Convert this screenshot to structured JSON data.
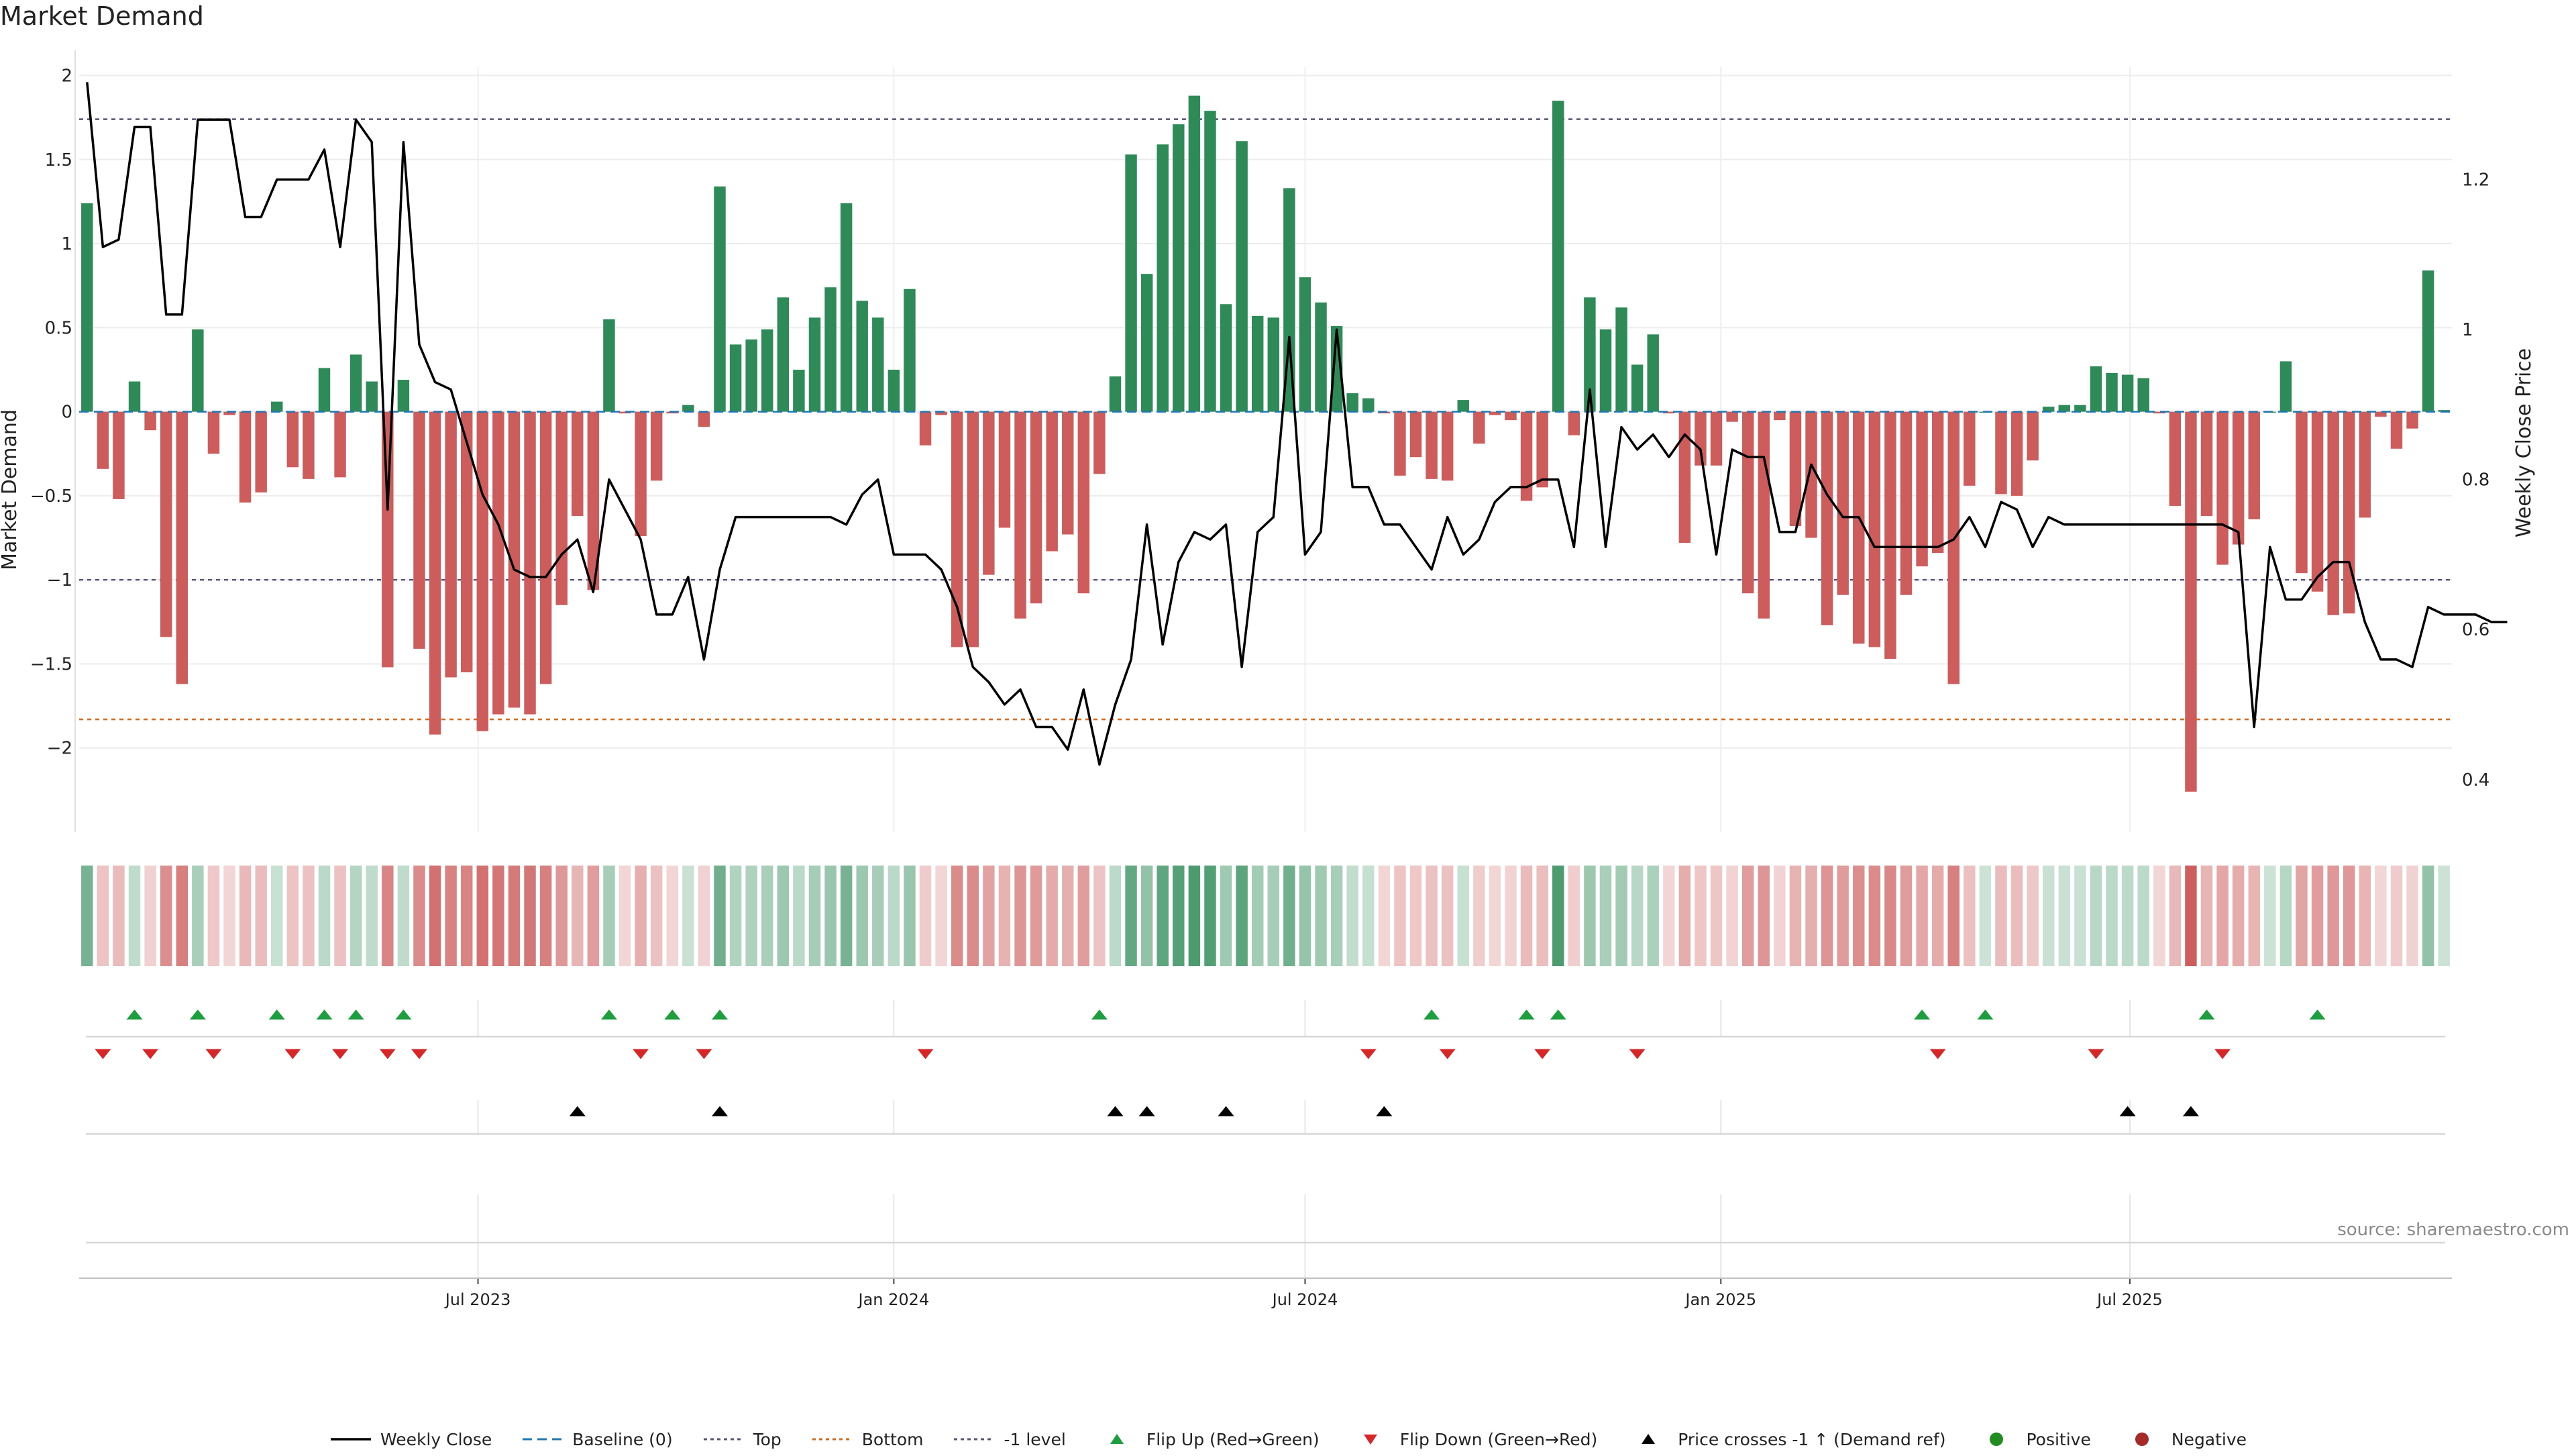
{
  "title": "Market Demand",
  "source": "source: sharemaestro.com",
  "colors": {
    "positive": "#2e8b57",
    "negative": "#cd5c5c",
    "close": "#000000",
    "baseline": "#1f77b4",
    "top": "#555577",
    "bottom": "#d2691e",
    "minus_one": "#555577",
    "flip_up": "#1f9e40",
    "flip_down": "#d62728",
    "cross": "#000000",
    "positive_dot": "#228b22",
    "negative_dot": "#a52a2a"
  },
  "chart_data": {
    "type": "bar",
    "start_date": "2023-01-09",
    "interval": "weekly",
    "title": "Market Demand",
    "ylabel": "Market Demand",
    "y2label": "Weekly Close Price",
    "ylim": [
      -2.5,
      2.05
    ],
    "y2lim": [
      0.33,
      1.35
    ],
    "yticks": [
      2,
      1.5,
      1,
      0.5,
      0,
      -0.5,
      -1,
      -1.5,
      -2
    ],
    "yticklabels": [
      "2",
      "1.5",
      "1",
      "0.5",
      "0",
      "−0.5",
      "−1",
      "−1.5",
      "−2"
    ],
    "y2ticks": [
      1.2,
      1.0,
      0.8,
      0.6,
      0.4
    ],
    "y2ticklabels": [
      "1.2",
      "1",
      "0.8",
      "0.6",
      "0.4"
    ],
    "xtick_dates": [
      "2023-07-01",
      "2024-01-01",
      "2024-07-01",
      "2025-01-01",
      "2025-07-01"
    ],
    "xticklabels": [
      "Jul 2023",
      "Jan 2024",
      "Jul 2024",
      "Jan 2025",
      "Jul 2025"
    ],
    "top_level": 1.74,
    "bottom_level": -1.83,
    "minus_one_level": -1.0,
    "grid": true,
    "legend_position": "bottom-center",
    "demand": [
      1.24,
      -0.34,
      -0.52,
      0.18,
      -0.11,
      -1.34,
      -1.62,
      0.49,
      -0.25,
      -0.02,
      -0.54,
      -0.48,
      0.06,
      -0.33,
      -0.4,
      0.26,
      -0.39,
      0.34,
      0.18,
      -1.52,
      0.19,
      -1.41,
      -1.92,
      -1.58,
      -1.55,
      -1.9,
      -1.8,
      -1.76,
      -1.8,
      -1.62,
      -1.15,
      -0.62,
      -1.06,
      0.55,
      -0.01,
      -0.74,
      -0.41,
      -0.01,
      0.04,
      -0.09,
      1.34,
      0.4,
      0.43,
      0.49,
      0.68,
      0.25,
      0.56,
      0.74,
      1.24,
      0.66,
      0.56,
      0.25,
      0.73,
      -0.2,
      -0.02,
      -1.4,
      -1.4,
      -0.97,
      -0.69,
      -1.23,
      -1.14,
      -0.83,
      -0.73,
      -1.08,
      -0.37,
      0.21,
      1.53,
      0.82,
      1.59,
      1.71,
      1.88,
      1.79,
      0.64,
      1.61,
      0.57,
      0.56,
      1.33,
      0.8,
      0.65,
      0.51,
      0.11,
      0.08,
      -0.01,
      -0.38,
      -0.27,
      -0.4,
      -0.41,
      0.07,
      -0.19,
      -0.02,
      -0.05,
      -0.53,
      -0.45,
      1.85,
      -0.14,
      0.68,
      0.49,
      0.62,
      0.28,
      0.46,
      -0.01,
      -0.78,
      -0.32,
      -0.32,
      -0.06,
      -1.08,
      -1.23,
      -0.05,
      -0.68,
      -0.75,
      -1.27,
      -1.09,
      -1.38,
      -1.4,
      -1.47,
      -1.09,
      -0.92,
      -0.84,
      -1.62,
      -0.44,
      0.0,
      -0.49,
      -0.5,
      -0.29,
      0.03,
      0.04,
      0.04,
      0.27,
      0.23,
      0.22,
      0.2,
      -0.01,
      -0.56,
      -2.26,
      -0.62,
      -0.91,
      -0.79,
      -0.64,
      0.0,
      0.3,
      -0.96,
      -1.07,
      -1.21,
      -1.2,
      -0.63,
      -0.03,
      -0.22,
      -0.1,
      0.84,
      0.01
    ],
    "close": [
      1.33,
      1.11,
      1.12,
      1.27,
      1.27,
      1.02,
      1.02,
      1.28,
      1.28,
      1.28,
      1.15,
      1.15,
      1.2,
      1.2,
      1.2,
      1.24,
      1.11,
      1.28,
      1.25,
      0.76,
      1.25,
      0.98,
      0.93,
      0.92,
      0.85,
      0.78,
      0.74,
      0.68,
      0.67,
      0.67,
      0.7,
      0.72,
      0.65,
      0.8,
      0.76,
      0.72,
      0.62,
      0.62,
      0.67,
      0.56,
      0.68,
      0.75,
      0.75,
      0.75,
      0.75,
      0.75,
      0.75,
      0.75,
      0.74,
      0.78,
      0.8,
      0.7,
      0.7,
      0.7,
      0.68,
      0.63,
      0.55,
      0.53,
      0.5,
      0.52,
      0.47,
      0.47,
      0.44,
      0.52,
      0.42,
      0.5,
      0.56,
      0.74,
      0.58,
      0.69,
      0.73,
      0.72,
      0.74,
      0.55,
      0.73,
      0.75,
      0.99,
      0.7,
      0.73,
      1.0,
      0.79,
      0.79,
      0.74,
      0.74,
      0.71,
      0.68,
      0.75,
      0.7,
      0.72,
      0.77,
      0.79,
      0.79,
      0.8,
      0.8,
      0.71,
      0.92,
      0.71,
      0.87,
      0.84,
      0.86,
      0.83,
      0.86,
      0.84,
      0.7,
      0.84,
      0.83,
      0.83,
      0.73,
      0.73,
      0.82,
      0.78,
      0.75,
      0.75,
      0.71,
      0.71,
      0.71,
      0.71,
      0.71,
      0.72,
      0.75,
      0.71,
      0.77,
      0.76,
      0.71,
      0.75,
      0.74,
      0.74,
      0.74,
      0.74,
      0.74,
      0.74,
      0.74,
      0.74,
      0.74,
      0.74,
      0.74,
      0.73,
      0.47,
      0.71,
      0.64,
      0.64,
      0.67,
      0.69,
      0.69,
      0.61,
      0.56,
      0.56,
      0.55,
      0.63,
      0.62,
      0.62,
      0.62,
      0.61,
      0.61
    ],
    "flip_up_index": [
      3,
      7,
      12,
      15,
      17,
      20,
      33,
      37,
      40,
      64,
      85,
      91,
      93,
      116,
      120,
      134,
      141
    ],
    "flip_down_index": [
      1,
      4,
      8,
      13,
      16,
      19,
      21,
      35,
      39,
      53,
      81,
      86,
      92,
      98,
      117,
      127,
      135
    ],
    "cross_index": [
      31,
      40,
      65,
      67,
      72,
      82,
      129,
      133
    ]
  },
  "legend": [
    {
      "label": "Weekly Close",
      "kind": "solid",
      "color": "#000000"
    },
    {
      "label": "Baseline (0)",
      "kind": "dash",
      "color": "#1f77b4"
    },
    {
      "label": "Top",
      "kind": "dot",
      "color": "#555577"
    },
    {
      "label": "Bottom",
      "kind": "dot",
      "color": "#d2691e"
    },
    {
      "label": "-1 level",
      "kind": "dot",
      "color": "#555577"
    },
    {
      "label": "Flip Up (Red→Green)",
      "kind": "tri-up",
      "color": "#1f9e40"
    },
    {
      "label": "Flip Down (Green→Red)",
      "kind": "tri-down",
      "color": "#d62728"
    },
    {
      "label": "Price crosses -1 ↑ (Demand ref)",
      "kind": "tri-up",
      "color": "#000000"
    },
    {
      "label": "Positive",
      "kind": "dot-circle",
      "color": "#228b22"
    },
    {
      "label": "Negative",
      "kind": "dot-circle",
      "color": "#a52a2a"
    }
  ]
}
